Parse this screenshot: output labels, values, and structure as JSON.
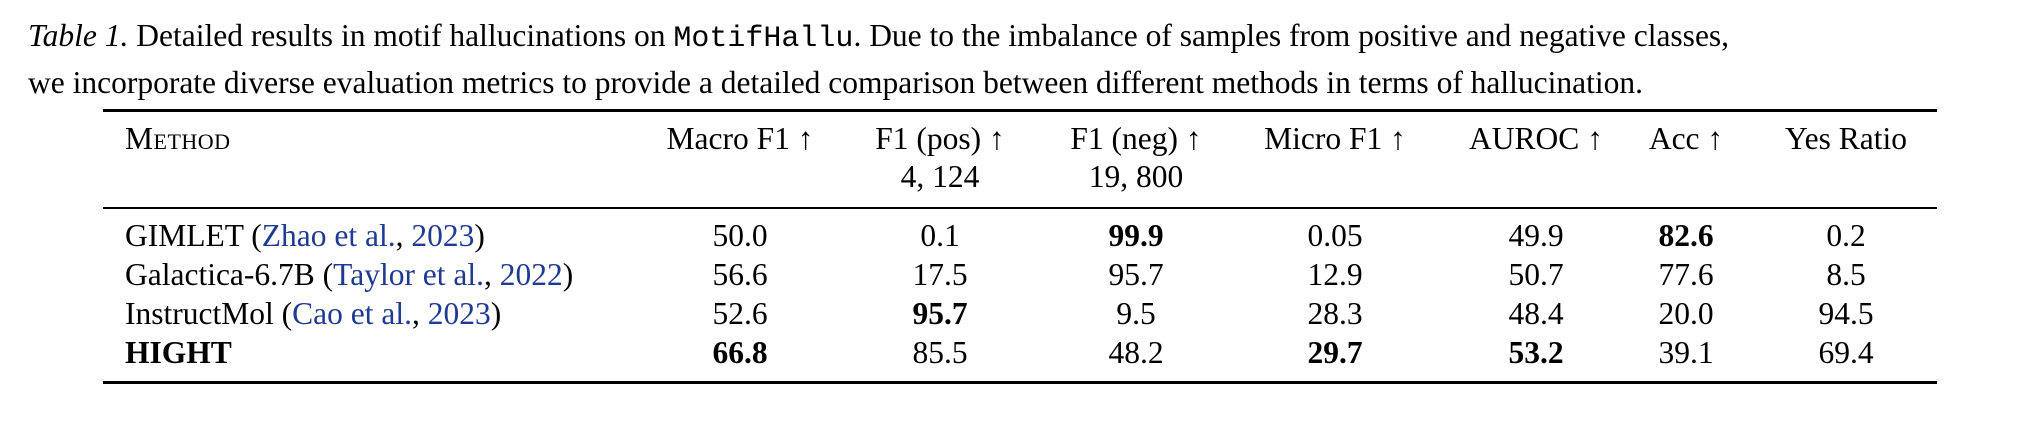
{
  "caption": {
    "label": "Table 1.",
    "text_before": " Detailed results in motif hallucinations on ",
    "dataset": "MotifHallu",
    "text_after_line1": ". Due to the imbalance of samples from positive and negative classes,",
    "line2": "we incorporate diverse evaluation metrics to provide a detailed comparison between different methods in terms of hallucination."
  },
  "columns": [
    {
      "label": "Method",
      "sub": ""
    },
    {
      "label": "Macro F1 ↑",
      "sub": ""
    },
    {
      "label": "F1 (pos) ↑",
      "sub": "4, 124"
    },
    {
      "label": "F1 (neg) ↑",
      "sub": "19, 800"
    },
    {
      "label": "Micro F1 ↑",
      "sub": ""
    },
    {
      "label": "AUROC ↑",
      "sub": ""
    },
    {
      "label": "Acc ↑",
      "sub": ""
    },
    {
      "label": "Yes Ratio",
      "sub": ""
    }
  ],
  "rows": [
    {
      "method": "GIMLET",
      "cite_author": "Zhao et al.",
      "cite_year": "2023",
      "method_bold": false,
      "values": [
        "50.0",
        "0.1",
        "99.9",
        "0.05",
        "49.9",
        "82.6",
        "0.2"
      ],
      "bold": [
        false,
        false,
        true,
        false,
        false,
        true,
        false
      ]
    },
    {
      "method": "Galactica-6.7B",
      "cite_author": "Taylor et al.",
      "cite_year": "2022",
      "method_bold": false,
      "values": [
        "56.6",
        "17.5",
        "95.7",
        "12.9",
        "50.7",
        "77.6",
        "8.5"
      ],
      "bold": [
        false,
        false,
        false,
        false,
        false,
        false,
        false
      ]
    },
    {
      "method": "InstructMol",
      "cite_author": "Cao et al.",
      "cite_year": "2023",
      "method_bold": false,
      "values": [
        "52.6",
        "95.7",
        "9.5",
        "28.3",
        "48.4",
        "20.0",
        "94.5"
      ],
      "bold": [
        false,
        true,
        false,
        false,
        false,
        false,
        false
      ]
    },
    {
      "method": "HIGHT",
      "cite_author": "",
      "cite_year": "",
      "method_bold": true,
      "values": [
        "66.8",
        "85.5",
        "48.2",
        "29.7",
        "53.2",
        "39.1",
        "69.4"
      ],
      "bold": [
        true,
        false,
        false,
        true,
        true,
        false,
        false
      ]
    }
  ]
}
